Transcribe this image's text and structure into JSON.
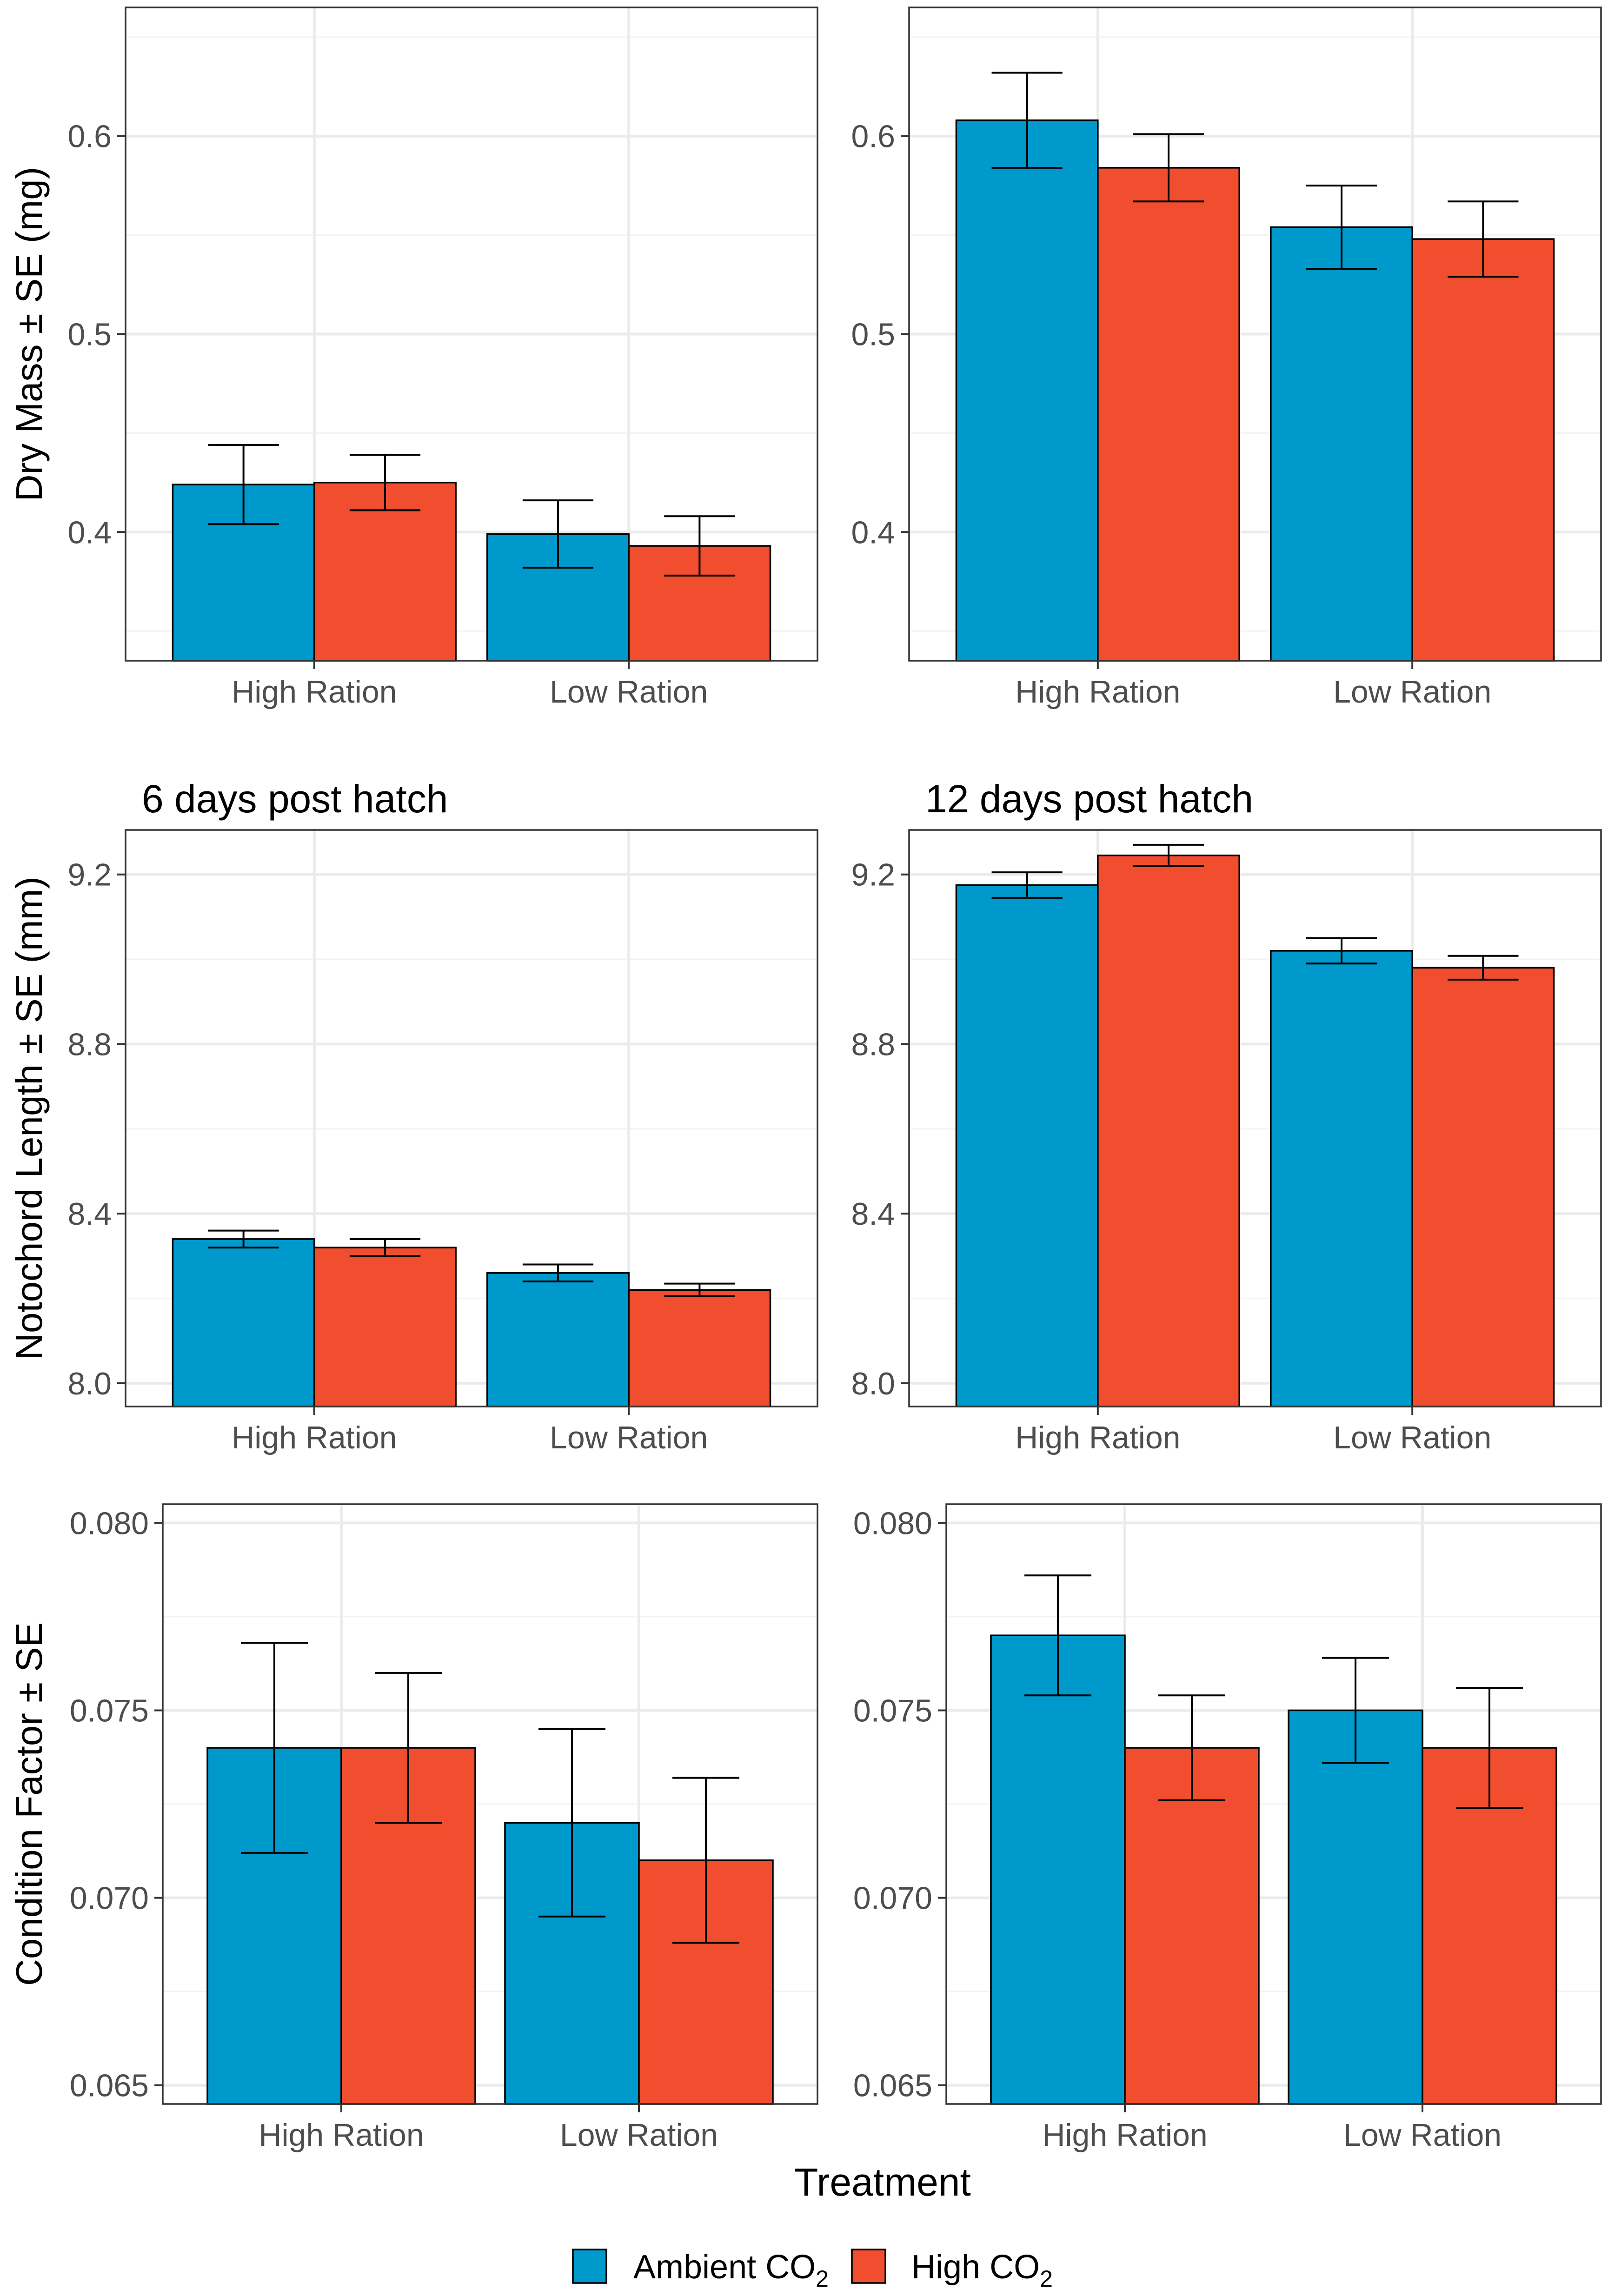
{
  "colors": {
    "ambient": "#0099CC",
    "high": "#F04E2E"
  },
  "legend": {
    "ambient_label": "Ambient CO",
    "ambient_sub": "2",
    "high_label": "High CO",
    "high_sub": "2"
  },
  "x_title": "Treatment",
  "chart_data": [
    {
      "id": "mass_6",
      "type": "bar",
      "title": "",
      "ylabel": "Dry Mass ± SE (mg)",
      "xlabel": "",
      "categories": [
        "High Ration",
        "Low Ration"
      ],
      "series": [
        {
          "name": "Ambient CO2",
          "values": [
            0.424,
            0.399
          ],
          "se": [
            0.02,
            0.017
          ]
        },
        {
          "name": "High CO2",
          "values": [
            0.425,
            0.393
          ],
          "se": [
            0.014,
            0.015
          ]
        }
      ],
      "ylim": [
        0.335,
        0.665
      ],
      "yticks": [
        0.4,
        0.5,
        0.6
      ],
      "ytick_labels": [
        "0.4",
        "0.5",
        "0.6"
      ],
      "ytick_minor": [
        0.35,
        0.45,
        0.55,
        0.65
      ]
    },
    {
      "id": "mass_12",
      "type": "bar",
      "title": "",
      "ylabel": "",
      "xlabel": "",
      "categories": [
        "High Ration",
        "Low Ration"
      ],
      "series": [
        {
          "name": "Ambient CO2",
          "values": [
            0.608,
            0.554
          ],
          "se": [
            0.024,
            0.021
          ]
        },
        {
          "name": "High CO2",
          "values": [
            0.584,
            0.548
          ],
          "se": [
            0.017,
            0.019
          ]
        }
      ],
      "ylim": [
        0.335,
        0.665
      ],
      "yticks": [
        0.4,
        0.5,
        0.6
      ],
      "ytick_labels": [
        "0.4",
        "0.5",
        "0.6"
      ],
      "ytick_minor": [
        0.35,
        0.45,
        0.55,
        0.65
      ]
    },
    {
      "id": "length_6",
      "type": "bar",
      "title": "6 days post hatch",
      "ylabel": "Notochord Length ± SE (mm)",
      "xlabel": "",
      "categories": [
        "High Ration",
        "Low Ration"
      ],
      "series": [
        {
          "name": "Ambient CO2",
          "values": [
            8.34,
            8.26
          ],
          "se": [
            0.02,
            0.02
          ]
        },
        {
          "name": "High CO2",
          "values": [
            8.32,
            8.22
          ],
          "se": [
            0.02,
            0.015
          ]
        }
      ],
      "ylim": [
        7.945,
        9.305
      ],
      "yticks": [
        8.0,
        8.4,
        8.8,
        9.2
      ],
      "ytick_labels": [
        "8.0",
        "8.4",
        "8.8",
        "9.2"
      ],
      "ytick_minor": [
        8.2,
        8.6,
        9.0
      ]
    },
    {
      "id": "length_12",
      "type": "bar",
      "title": "12 days post hatch",
      "ylabel": "",
      "xlabel": "",
      "categories": [
        "High Ration",
        "Low Ration"
      ],
      "series": [
        {
          "name": "Ambient CO2",
          "values": [
            9.175,
            9.02
          ],
          "se": [
            0.03,
            0.03
          ]
        },
        {
          "name": "High CO2",
          "values": [
            9.245,
            8.98
          ],
          "se": [
            0.025,
            0.028
          ]
        }
      ],
      "ylim": [
        7.945,
        9.305
      ],
      "yticks": [
        8.0,
        8.4,
        8.8,
        9.2
      ],
      "ytick_labels": [
        "8.0",
        "8.4",
        "8.8",
        "9.2"
      ],
      "ytick_minor": [
        8.2,
        8.6,
        9.0
      ]
    },
    {
      "id": "cond_6",
      "type": "bar",
      "title": "",
      "ylabel": "Condition Factor ± SE",
      "xlabel": "",
      "categories": [
        "High Ration",
        "Low Ration"
      ],
      "series": [
        {
          "name": "Ambient CO2",
          "values": [
            0.074,
            0.072
          ],
          "se": [
            0.0028,
            0.0025
          ]
        },
        {
          "name": "High CO2",
          "values": [
            0.074,
            0.071
          ],
          "se": [
            0.002,
            0.0022
          ]
        }
      ],
      "ylim": [
        0.0645,
        0.0805
      ],
      "yticks": [
        0.065,
        0.07,
        0.075,
        0.08
      ],
      "ytick_labels": [
        "0.065",
        "0.070",
        "0.075",
        "0.080"
      ],
      "ytick_minor": [
        0.0675,
        0.0725,
        0.0775
      ]
    },
    {
      "id": "cond_12",
      "type": "bar",
      "title": "",
      "ylabel": "",
      "xlabel": "",
      "categories": [
        "High Ration",
        "Low Ration"
      ],
      "series": [
        {
          "name": "Ambient CO2",
          "values": [
            0.077,
            0.075
          ],
          "se": [
            0.0016,
            0.0014
          ]
        },
        {
          "name": "High CO2",
          "values": [
            0.074,
            0.074
          ],
          "se": [
            0.0014,
            0.0016
          ]
        }
      ],
      "ylim": [
        0.0645,
        0.0805
      ],
      "yticks": [
        0.065,
        0.07,
        0.075,
        0.08
      ],
      "ytick_labels": [
        "0.065",
        "0.070",
        "0.075",
        "0.080"
      ],
      "ytick_minor": [
        0.0675,
        0.0725,
        0.0775
      ]
    }
  ]
}
